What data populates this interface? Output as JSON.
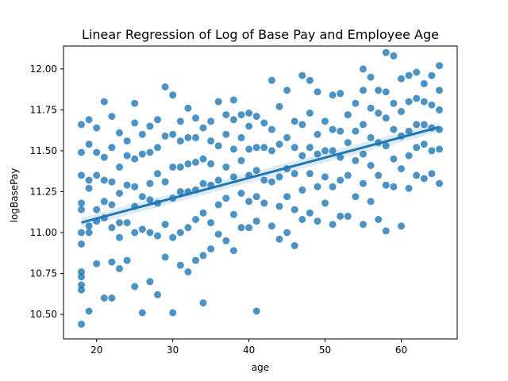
{
  "chart_data": {
    "type": "scatter",
    "title": "Linear Regression of Log of Base Pay and Employee Age",
    "xlabel": "age",
    "ylabel": "logBasePay",
    "xlim": [
      15.65,
      67.35
    ],
    "ylim": [
      10.35,
      12.14
    ],
    "xticks": [
      20,
      30,
      40,
      50,
      60
    ],
    "yticks": [
      10.5,
      10.75,
      11.0,
      11.25,
      11.5,
      11.75,
      12.0
    ],
    "grid": false,
    "legend": "none",
    "colors": {
      "points": "#1f77b4",
      "line": "#1f77b4",
      "ci_band": "#1f77b4"
    },
    "regression": {
      "intercept": 10.838,
      "slope": 0.0124,
      "x_range": [
        18,
        65
      ],
      "ci_halfwidth": 0.03
    },
    "points": [
      [
        18,
        10.44
      ],
      [
        18,
        10.65
      ],
      [
        18,
        10.68
      ],
      [
        18,
        10.73
      ],
      [
        18,
        10.76
      ],
      [
        18,
        10.93
      ],
      [
        18,
        11.0
      ],
      [
        18,
        11.14
      ],
      [
        18,
        11.18
      ],
      [
        18,
        11.35
      ],
      [
        18,
        11.49
      ],
      [
        18,
        11.66
      ],
      [
        19,
        10.52
      ],
      [
        19,
        11.0
      ],
      [
        19,
        11.04
      ],
      [
        19,
        11.27
      ],
      [
        19,
        11.32
      ],
      [
        19,
        11.54
      ],
      [
        19,
        11.69
      ],
      [
        20,
        10.81
      ],
      [
        20,
        11.07
      ],
      [
        20,
        11.14
      ],
      [
        20,
        11.35
      ],
      [
        20,
        11.49
      ],
      [
        20,
        11.64
      ],
      [
        21,
        10.6
      ],
      [
        21,
        11.09
      ],
      [
        21,
        11.19
      ],
      [
        21,
        11.32
      ],
      [
        21,
        11.46
      ],
      [
        21,
        11.8
      ],
      [
        22,
        10.6
      ],
      [
        22,
        10.82
      ],
      [
        22,
        11.03
      ],
      [
        22,
        11.17
      ],
      [
        22,
        11.31
      ],
      [
        22,
        11.52
      ],
      [
        22,
        11.71
      ],
      [
        23,
        10.78
      ],
      [
        23,
        10.97
      ],
      [
        23,
        11.06
      ],
      [
        23,
        11.24
      ],
      [
        23,
        11.4
      ],
      [
        23,
        11.61
      ],
      [
        24,
        10.83
      ],
      [
        24,
        11.06
      ],
      [
        24,
        11.29
      ],
      [
        24,
        11.47
      ],
      [
        24,
        11.56
      ],
      [
        25,
        10.67
      ],
      [
        25,
        11.0
      ],
      [
        25,
        11.16
      ],
      [
        25,
        11.28
      ],
      [
        25,
        11.45
      ],
      [
        25,
        11.67
      ],
      [
        25,
        11.79
      ],
      [
        26,
        10.51
      ],
      [
        26,
        11.02
      ],
      [
        26,
        11.22
      ],
      [
        26,
        11.48
      ],
      [
        26,
        11.6
      ],
      [
        27,
        10.7
      ],
      [
        27,
        11.0
      ],
      [
        27,
        11.2
      ],
      [
        27,
        11.3
      ],
      [
        27,
        11.49
      ],
      [
        27,
        11.65
      ],
      [
        28,
        10.62
      ],
      [
        28,
        10.98
      ],
      [
        28,
        11.18
      ],
      [
        28,
        11.36
      ],
      [
        28,
        11.52
      ],
      [
        28,
        11.69
      ],
      [
        29,
        10.85
      ],
      [
        29,
        11.05
      ],
      [
        29,
        11.31
      ],
      [
        29,
        11.59
      ],
      [
        29,
        11.89
      ],
      [
        30,
        10.51
      ],
      [
        30,
        10.97
      ],
      [
        30,
        11.21
      ],
      [
        30,
        11.4
      ],
      [
        30,
        11.6
      ],
      [
        30,
        11.84
      ],
      [
        31,
        10.8
      ],
      [
        31,
        11.0
      ],
      [
        31,
        11.25
      ],
      [
        31,
        11.4
      ],
      [
        31,
        11.56
      ],
      [
        31,
        11.68
      ],
      [
        32,
        10.76
      ],
      [
        32,
        11.03
      ],
      [
        32,
        11.25
      ],
      [
        32,
        11.42
      ],
      [
        32,
        11.58
      ],
      [
        32,
        11.76
      ],
      [
        33,
        10.83
      ],
      [
        33,
        11.08
      ],
      [
        33,
        11.26
      ],
      [
        33,
        11.43
      ],
      [
        33,
        11.58
      ],
      [
        33,
        11.7
      ],
      [
        34,
        10.57
      ],
      [
        34,
        10.86
      ],
      [
        34,
        11.12
      ],
      [
        34,
        11.3
      ],
      [
        34,
        11.45
      ],
      [
        34,
        11.64
      ],
      [
        35,
        10.9
      ],
      [
        35,
        11.06
      ],
      [
        35,
        11.29
      ],
      [
        35,
        11.42
      ],
      [
        35,
        11.56
      ],
      [
        35,
        11.68
      ],
      [
        36,
        10.99
      ],
      [
        36,
        11.17
      ],
      [
        36,
        11.32
      ],
      [
        36,
        11.53
      ],
      [
        36,
        11.8
      ],
      [
        37,
        10.95
      ],
      [
        37,
        11.21
      ],
      [
        37,
        11.4
      ],
      [
        37,
        11.6
      ],
      [
        37,
        11.72
      ],
      [
        38,
        10.89
      ],
      [
        38,
        11.11
      ],
      [
        38,
        11.34
      ],
      [
        38,
        11.51
      ],
      [
        38,
        11.69
      ],
      [
        38,
        11.81
      ],
      [
        39,
        11.03
      ],
      [
        39,
        11.24
      ],
      [
        39,
        11.44
      ],
      [
        39,
        11.58
      ],
      [
        39,
        11.72
      ],
      [
        40,
        11.03
      ],
      [
        40,
        11.19
      ],
      [
        40,
        11.35
      ],
      [
        40,
        11.51
      ],
      [
        40,
        11.65
      ],
      [
        40,
        11.73
      ],
      [
        41,
        10.52
      ],
      [
        41,
        11.07
      ],
      [
        41,
        11.22
      ],
      [
        41,
        11.38
      ],
      [
        41,
        11.52
      ],
      [
        41,
        11.71
      ],
      [
        42,
        11.18
      ],
      [
        42,
        11.32
      ],
      [
        42,
        11.52
      ],
      [
        42,
        11.67
      ],
      [
        43,
        11.04
      ],
      [
        43,
        11.31
      ],
      [
        43,
        11.5
      ],
      [
        43,
        11.63
      ],
      [
        43,
        11.93
      ],
      [
        44,
        10.96
      ],
      [
        44,
        11.16
      ],
      [
        44,
        11.34
      ],
      [
        44,
        11.54
      ],
      [
        44,
        11.77
      ],
      [
        45,
        11.0
      ],
      [
        45,
        11.22
      ],
      [
        45,
        11.39
      ],
      [
        45,
        11.58
      ],
      [
        45,
        11.87
      ],
      [
        46,
        10.92
      ],
      [
        46,
        11.14
      ],
      [
        46,
        11.36
      ],
      [
        46,
        11.52
      ],
      [
        46,
        11.68
      ],
      [
        47,
        11.08
      ],
      [
        47,
        11.26
      ],
      [
        47,
        11.47
      ],
      [
        47,
        11.66
      ],
      [
        47,
        11.96
      ],
      [
        48,
        11.12
      ],
      [
        48,
        11.36
      ],
      [
        48,
        11.52
      ],
      [
        48,
        11.73
      ],
      [
        48,
        11.93
      ],
      [
        49,
        11.07
      ],
      [
        49,
        11.28
      ],
      [
        49,
        11.48
      ],
      [
        49,
        11.6
      ],
      [
        49,
        11.86
      ],
      [
        50,
        11.18
      ],
      [
        50,
        11.34
      ],
      [
        50,
        11.5
      ],
      [
        50,
        11.68
      ],
      [
        51,
        11.05
      ],
      [
        51,
        11.28
      ],
      [
        51,
        11.5
      ],
      [
        51,
        11.63
      ],
      [
        51,
        11.84
      ],
      [
        52,
        11.1
      ],
      [
        52,
        11.32
      ],
      [
        52,
        11.46
      ],
      [
        52,
        11.62
      ],
      [
        52,
        11.85
      ],
      [
        53,
        11.1
      ],
      [
        53,
        11.35
      ],
      [
        53,
        11.55
      ],
      [
        53,
        11.72
      ],
      [
        54,
        11.22
      ],
      [
        54,
        11.44
      ],
      [
        54,
        11.62
      ],
      [
        54,
        11.79
      ],
      [
        55,
        11.05
      ],
      [
        55,
        11.3
      ],
      [
        55,
        11.48
      ],
      [
        55,
        11.66
      ],
      [
        55,
        11.87
      ],
      [
        55,
        12.0
      ],
      [
        56,
        11.19
      ],
      [
        56,
        11.41
      ],
      [
        56,
        11.58
      ],
      [
        56,
        11.76
      ],
      [
        56,
        11.95
      ],
      [
        57,
        11.08
      ],
      [
        57,
        11.35
      ],
      [
        57,
        11.55
      ],
      [
        57,
        11.73
      ],
      [
        57,
        11.87
      ],
      [
        58,
        11.01
      ],
      [
        58,
        11.29
      ],
      [
        58,
        11.53
      ],
      [
        58,
        11.7
      ],
      [
        58,
        11.86
      ],
      [
        58,
        12.1
      ],
      [
        59,
        11.28
      ],
      [
        59,
        11.45
      ],
      [
        59,
        11.63
      ],
      [
        59,
        11.79
      ],
      [
        59,
        12.08
      ],
      [
        60,
        11.04
      ],
      [
        60,
        11.39
      ],
      [
        60,
        11.59
      ],
      [
        60,
        11.74
      ],
      [
        60,
        11.94
      ],
      [
        61,
        11.27
      ],
      [
        61,
        11.47
      ],
      [
        61,
        11.62
      ],
      [
        61,
        11.8
      ],
      [
        61,
        11.96
      ],
      [
        62,
        11.35
      ],
      [
        62,
        11.52
      ],
      [
        62,
        11.66
      ],
      [
        62,
        11.82
      ],
      [
        62,
        11.98
      ],
      [
        63,
        11.33
      ],
      [
        63,
        11.54
      ],
      [
        63,
        11.66
      ],
      [
        63,
        11.8
      ],
      [
        63,
        11.91
      ],
      [
        64,
        11.36
      ],
      [
        64,
        11.5
      ],
      [
        64,
        11.64
      ],
      [
        64,
        11.78
      ],
      [
        64,
        11.96
      ],
      [
        65,
        11.3
      ],
      [
        65,
        11.51
      ],
      [
        65,
        11.63
      ],
      [
        65,
        11.75
      ],
      [
        65,
        11.87
      ],
      [
        65,
        12.02
      ]
    ]
  }
}
